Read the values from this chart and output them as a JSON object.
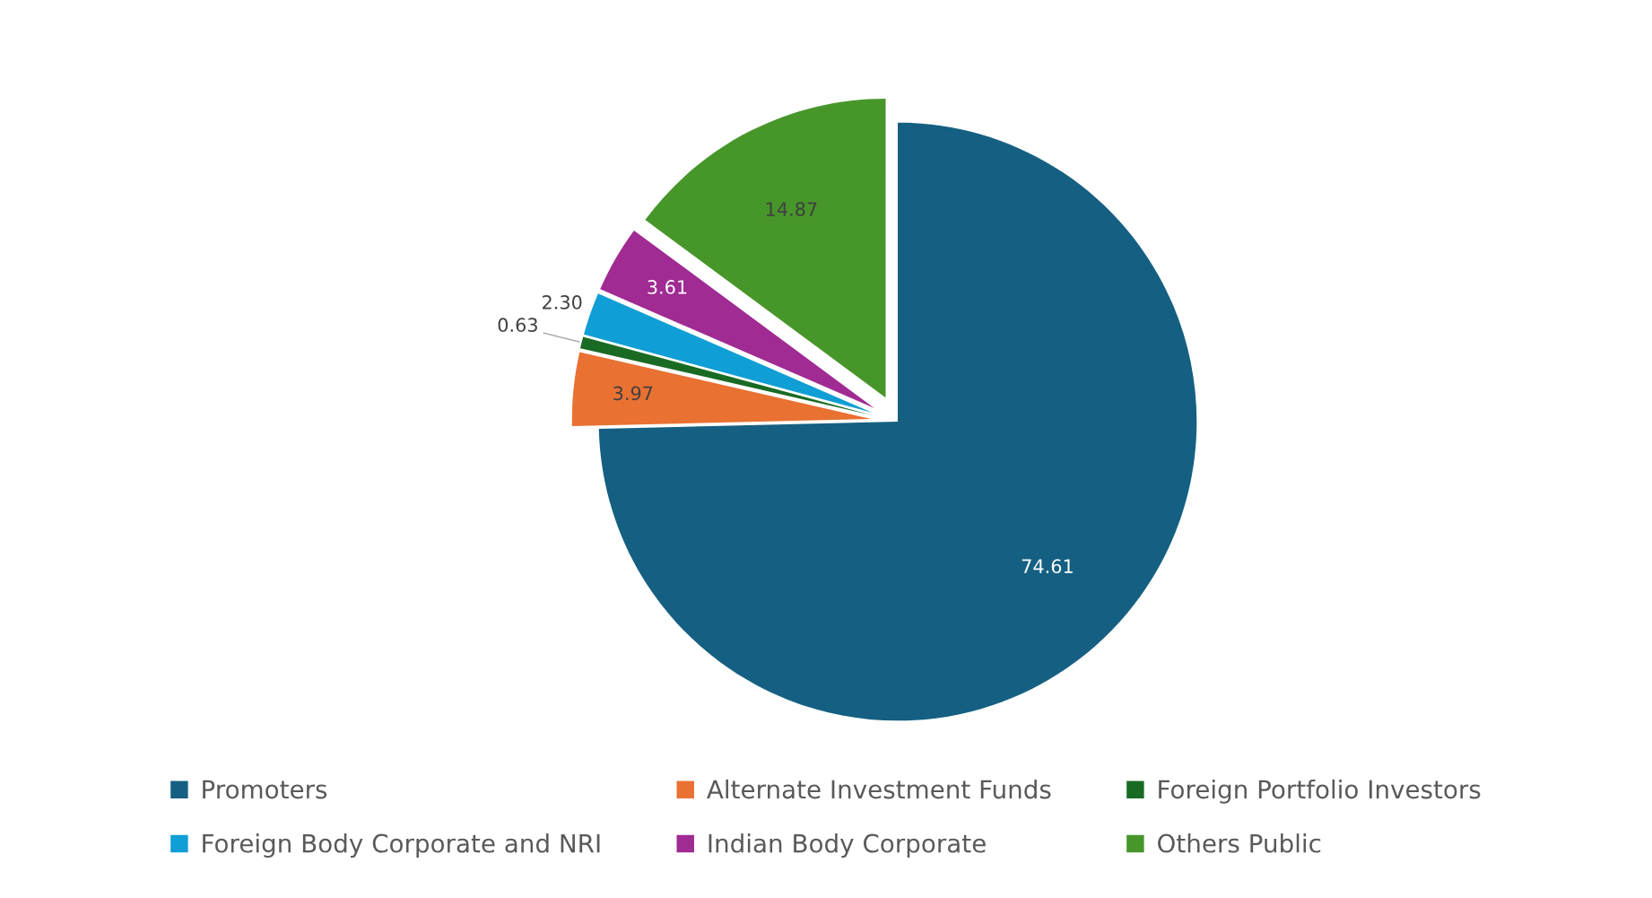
{
  "chart_data": {
    "type": "pie",
    "categories": [
      "Promoters",
      "Alternate Investment Funds",
      "Foreign Portfolio Investors",
      "Foreign Body Corporate and NRI",
      "Indian Body Corporate",
      "Others Public"
    ],
    "values": [
      74.61,
      3.97,
      0.63,
      2.3,
      3.61,
      14.87
    ],
    "colors": [
      "#156082",
      "#e97132",
      "#196b24",
      "#0f9ed5",
      "#a02b93",
      "#47962a"
    ],
    "value_labels": [
      "74.61",
      "3.97",
      "0.63",
      "2.30",
      "3.61",
      "14.87"
    ],
    "legend": "bottom"
  }
}
